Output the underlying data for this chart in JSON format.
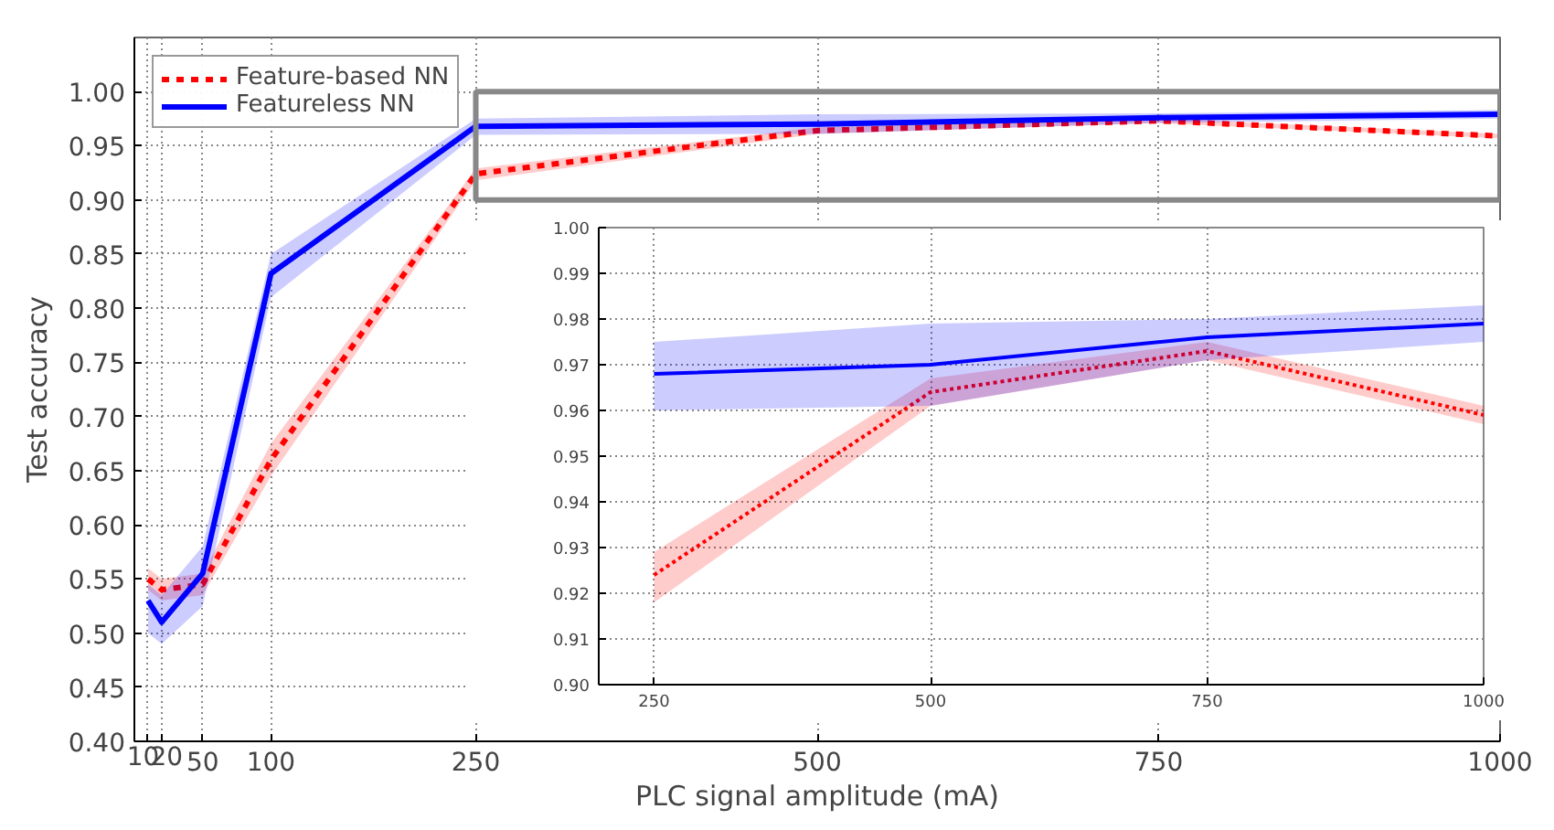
{
  "chart_data": [
    {
      "type": "line",
      "xlabel": "PLC signal amplitude (mA)",
      "ylabel": "Test accuracy",
      "x": [
        10,
        20,
        50,
        100,
        250,
        500,
        750,
        1000
      ],
      "xlim": [
        0,
        1000
      ],
      "ylim": [
        0.4,
        1.05
      ],
      "xticks": [
        10,
        20,
        50,
        100,
        250,
        500,
        750,
        1000
      ],
      "yticks": [
        {
          "value": 0.4,
          "label": "0.40"
        },
        {
          "value": 0.45,
          "label": "0.45"
        },
        {
          "value": 0.5,
          "label": "0.50"
        },
        {
          "value": 0.55,
          "label": "0.55"
        },
        {
          "value": 0.6,
          "label": "0.60"
        },
        {
          "value": 0.65,
          "label": "0.65"
        },
        {
          "value": 0.7,
          "label": "0.70"
        },
        {
          "value": 0.75,
          "label": "0.75"
        },
        {
          "value": 0.8,
          "label": "0.80"
        },
        {
          "value": 0.85,
          "label": "0.85"
        },
        {
          "value": 0.9,
          "label": "0.90"
        },
        {
          "value": 0.95,
          "label": "0.95"
        },
        {
          "value": 1.0,
          "label": "1.00"
        }
      ],
      "grid": true,
      "legend": "top left",
      "series": [
        {
          "name": "Feature-based NN",
          "color": "#ff0000",
          "line_style": "dashed",
          "values": [
            0.55,
            0.54,
            0.545,
            0.66,
            0.924,
            0.964,
            0.973,
            0.959
          ],
          "lower": [
            0.54,
            0.53,
            0.535,
            0.645,
            0.918,
            0.961,
            0.971,
            0.957
          ],
          "upper": [
            0.56,
            0.55,
            0.555,
            0.675,
            0.929,
            0.967,
            0.975,
            0.961
          ]
        },
        {
          "name": "Featureless NN",
          "color": "#0000ff",
          "line_style": "solid",
          "values": [
            0.53,
            0.51,
            0.555,
            0.832,
            0.968,
            0.97,
            0.976,
            0.979
          ],
          "lower": [
            0.5,
            0.49,
            0.525,
            0.81,
            0.96,
            0.961,
            0.971,
            0.975
          ],
          "upper": [
            0.545,
            0.535,
            0.58,
            0.85,
            0.975,
            0.979,
            0.98,
            0.983
          ]
        }
      ]
    },
    {
      "type": "line",
      "x": [
        250,
        500,
        750,
        1000
      ],
      "xlim": [
        200,
        1000
      ],
      "ylim": [
        0.9,
        1.0
      ],
      "xticks": [
        250,
        500,
        750,
        1000
      ],
      "yticks": [
        {
          "value": 0.9,
          "label": "0.90"
        },
        {
          "value": 0.91,
          "label": "0.91"
        },
        {
          "value": 0.92,
          "label": "0.92"
        },
        {
          "value": 0.93,
          "label": "0.93"
        },
        {
          "value": 0.94,
          "label": "0.94"
        },
        {
          "value": 0.95,
          "label": "0.95"
        },
        {
          "value": 0.96,
          "label": "0.96"
        },
        {
          "value": 0.97,
          "label": "0.97"
        },
        {
          "value": 0.98,
          "label": "0.98"
        },
        {
          "value": 0.99,
          "label": "0.99"
        },
        {
          "value": 1.0,
          "label": "1.00"
        }
      ],
      "grid": true,
      "series": [
        {
          "color": "#ff0000",
          "line_style": "dotted",
          "values": [
            0.924,
            0.964,
            0.973,
            0.959
          ],
          "lower": [
            0.918,
            0.961,
            0.971,
            0.957
          ],
          "upper": [
            0.929,
            0.967,
            0.975,
            0.961
          ]
        },
        {
          "color": "#0000ff",
          "line_style": "solid",
          "values": [
            0.968,
            0.97,
            0.976,
            0.979
          ],
          "lower": [
            0.96,
            0.961,
            0.971,
            0.975
          ],
          "upper": [
            0.975,
            0.979,
            0.98,
            0.983
          ]
        }
      ]
    }
  ]
}
